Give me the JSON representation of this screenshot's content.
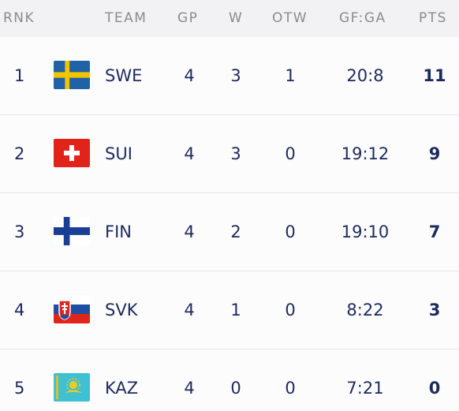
{
  "columns": [
    "RNK",
    "TEAM",
    "GP",
    "W",
    "OTW",
    "GF:GA",
    "PTS"
  ],
  "rows": [
    {
      "rank": "1",
      "team": "SWE",
      "gp": "4",
      "w": "3",
      "otw": "1",
      "gfga": "20:8",
      "pts": "11",
      "flag": "sweden-flag"
    },
    {
      "rank": "2",
      "team": "SUI",
      "gp": "4",
      "w": "3",
      "otw": "0",
      "gfga": "19:12",
      "pts": "9",
      "flag": "switzerland-flag"
    },
    {
      "rank": "3",
      "team": "FIN",
      "gp": "4",
      "w": "2",
      "otw": "0",
      "gfga": "19:10",
      "pts": "7",
      "flag": "finland-flag"
    },
    {
      "rank": "4",
      "team": "SVK",
      "gp": "4",
      "w": "1",
      "otw": "0",
      "gfga": "8:22",
      "pts": "3",
      "flag": "slovakia-flag"
    },
    {
      "rank": "5",
      "team": "KAZ",
      "gp": "4",
      "w": "0",
      "otw": "0",
      "gfga": "7:21",
      "pts": "0",
      "flag": "kazakhstan-flag"
    }
  ],
  "colors": {
    "text": "#1d2a5c",
    "header_bg": "#f2f1f3",
    "header_text": "#8c8c8c",
    "divider": "#e6e5ea"
  }
}
